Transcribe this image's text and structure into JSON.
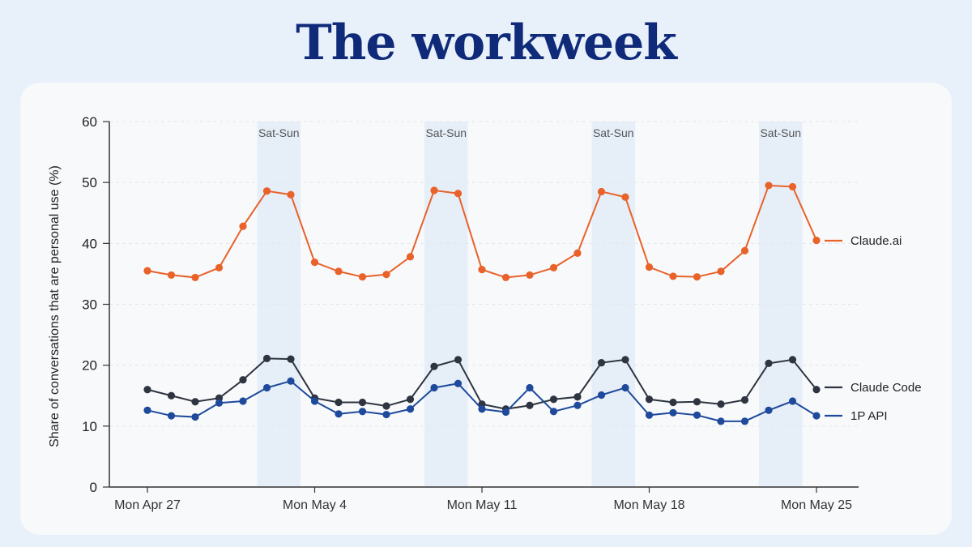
{
  "page": {
    "title": "The workweek"
  },
  "chart_data": {
    "type": "line",
    "title": "The workweek",
    "xlabel": "",
    "ylabel": "Share of conversations that are personal use (%)",
    "ylim": [
      0,
      60
    ],
    "yticks": [
      "0",
      "10",
      "20",
      "30",
      "40",
      "50",
      "60"
    ],
    "x": [
      "Apr 27",
      "Apr 28",
      "Apr 29",
      "Apr 30",
      "May 1",
      "May 2",
      "May 3",
      "May 4",
      "May 5",
      "May 6",
      "May 7",
      "May 8",
      "May 9",
      "May 10",
      "May 11",
      "May 12",
      "May 13",
      "May 14",
      "May 15",
      "May 16",
      "May 17",
      "May 18",
      "May 19",
      "May 20",
      "May 21",
      "May 22",
      "May 23",
      "May 24",
      "May 25"
    ],
    "xtick_labels": [
      {
        "index": 0,
        "label": "Mon Apr 27"
      },
      {
        "index": 7,
        "label": "Mon May 4"
      },
      {
        "index": 14,
        "label": "Mon May 11"
      },
      {
        "index": 21,
        "label": "Mon May 18"
      },
      {
        "index": 28,
        "label": "Mon May 25"
      }
    ],
    "weekend_bands": [
      {
        "start": 5,
        "end": 6,
        "label": "Sat-Sun"
      },
      {
        "start": 12,
        "end": 13,
        "label": "Sat-Sun"
      },
      {
        "start": 19,
        "end": 20,
        "label": "Sat-Sun"
      },
      {
        "start": 26,
        "end": 27,
        "label": "Sat-Sun"
      }
    ],
    "legend_position": "right (end of lines)",
    "grid": "horizontal dashed",
    "series": [
      {
        "name": "Claude.ai",
        "color": "#e8622a",
        "values": [
          35.5,
          34.8,
          34.4,
          36.0,
          42.8,
          48.6,
          48.0,
          36.9,
          35.4,
          34.5,
          34.9,
          37.8,
          48.7,
          48.2,
          35.7,
          34.4,
          34.8,
          36.0,
          38.4,
          48.5,
          47.6,
          36.1,
          34.6,
          34.5,
          35.4,
          38.8,
          49.5,
          49.3,
          40.5
        ]
      },
      {
        "name": "Claude Code",
        "color": "#2e3440",
        "values": [
          16.0,
          15.0,
          14.0,
          14.6,
          17.6,
          21.1,
          21.0,
          14.6,
          13.9,
          13.9,
          13.3,
          14.4,
          19.8,
          20.9,
          13.6,
          12.8,
          13.4,
          14.4,
          14.8,
          20.4,
          20.9,
          14.4,
          13.9,
          14.0,
          13.6,
          14.3,
          20.3,
          20.9,
          16.0
        ]
      },
      {
        "name": "1P API",
        "color": "#1f4a9c",
        "values": [
          12.6,
          11.7,
          11.5,
          13.8,
          14.1,
          16.3,
          17.4,
          14.1,
          12.0,
          12.4,
          11.9,
          12.8,
          16.3,
          17.0,
          12.8,
          12.3,
          16.3,
          12.4,
          13.4,
          15.1,
          16.3,
          11.8,
          12.2,
          11.8,
          10.8,
          10.8,
          12.6,
          14.1,
          11.7
        ]
      }
    ]
  }
}
